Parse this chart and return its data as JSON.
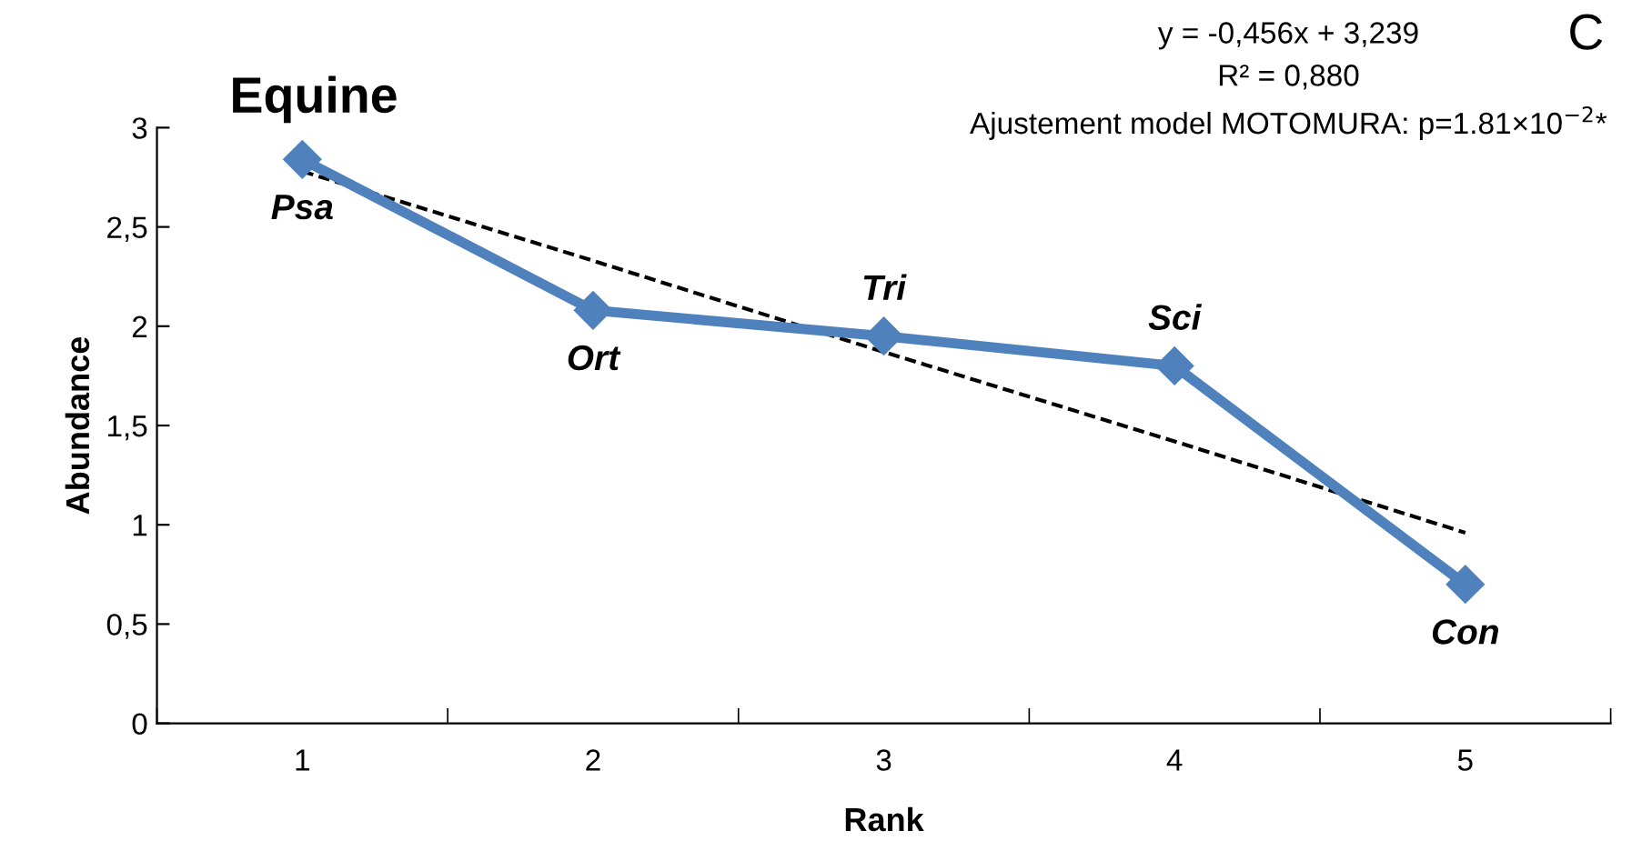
{
  "chart_data": {
    "type": "line",
    "title": "Equine",
    "xlabel": "Rank",
    "ylabel": "Abundance",
    "categories": [
      "1",
      "2",
      "3",
      "4",
      "5"
    ],
    "series": [
      {
        "color": "#4f81bd",
        "values": [
          2.84,
          2.08,
          1.95,
          1.8,
          0.7
        ],
        "marker": "diamond",
        "line_style": "solid"
      },
      {
        "type": "line",
        "color": "#000000",
        "values": [
          2.78,
          2.33,
          1.87,
          1.42,
          0.96
        ],
        "marker": "none",
        "line_style": "dashed"
      }
    ],
    "ylim": [
      0,
      3
    ],
    "yticks": [
      0,
      {
        "value": 0.5,
        "label": "0,5"
      },
      1,
      {
        "value": 1.5,
        "label": "1,5"
      },
      2,
      {
        "value": 2.5,
        "label": "2,5"
      },
      3
    ],
    "grid": false,
    "legend": false,
    "annotations": [
      {
        "text": "Psa",
        "x": "1",
        "y": 2.84
      },
      {
        "text": "Ort",
        "x": "2",
        "y": 2.08
      },
      {
        "text": "Tri",
        "x": "3",
        "y": 1.95
      },
      {
        "text": "Sci",
        "x": "4",
        "y": 1.8
      },
      {
        "text": "Con",
        "x": "5",
        "y": 0.7
      },
      "y = -0,456x + 3,239",
      "R² = 0,880",
      "Ajustement model MOTOMURA: p=1.81×10$^{−2}$*",
      "C"
    ]
  }
}
